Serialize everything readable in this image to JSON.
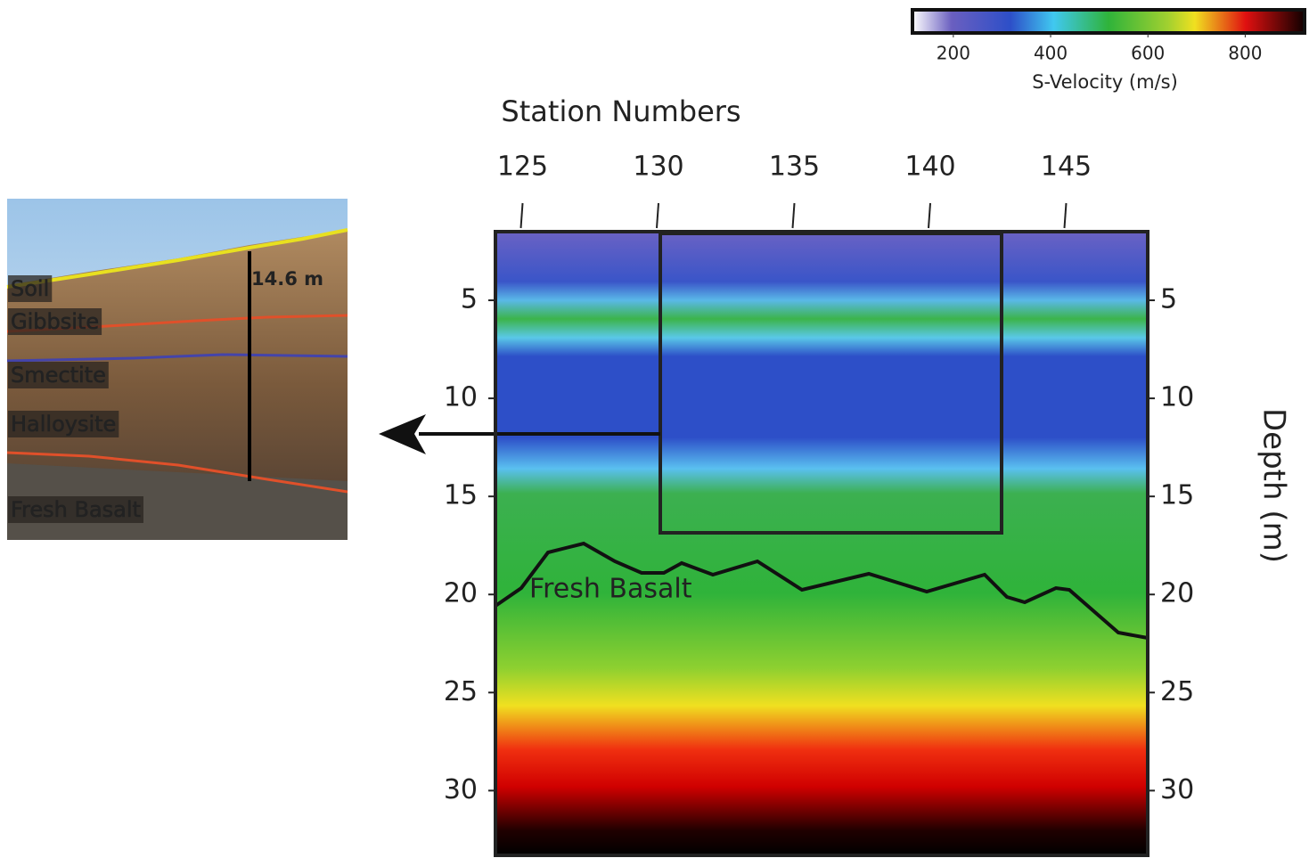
{
  "chart_data": {
    "type": "contour",
    "xlabel": "Station Numbers",
    "ylabel": "Depth (m)",
    "xlim": [
      124,
      148
    ],
    "xticks": [
      125,
      130,
      135,
      140,
      145
    ],
    "ylim": [
      1.5,
      33.3
    ],
    "yticks": [
      5,
      10,
      15,
      20,
      25,
      30
    ],
    "colorbar": {
      "label": "S-Velocity (m/s)",
      "lim": [
        116,
        922
      ],
      "ticks": [
        200,
        400,
        600,
        800
      ]
    },
    "annotation": "Fresh Basalt"
  },
  "photo": {
    "layers": [
      "Soil",
      "Gibbsite",
      "Smectite",
      "Halloysite",
      "Fresh Basalt"
    ],
    "scale_label": "14.6 m"
  }
}
